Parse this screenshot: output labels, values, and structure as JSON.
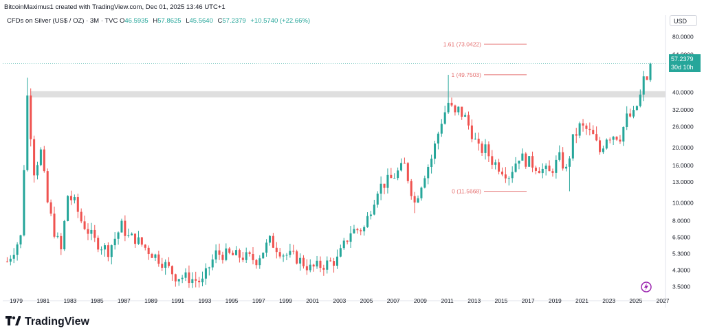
{
  "header": {
    "created_by": "BitcoinMaximus1 created with TradingView.com, Dec 01, 2025 13:46 UTC+1"
  },
  "symbol_bar": {
    "name": "CFDs on Silver (US$ / OZ) · 3M · TVC",
    "open_label": "O",
    "open": "46.5935",
    "high_label": "H",
    "high": "57.8625",
    "low_label": "L",
    "low": "45.5640",
    "close_label": "C",
    "close": "57.2379",
    "change": "+10.5740 (+22.66%)"
  },
  "currency_button": "USD",
  "last_price": {
    "value": "57.2379",
    "countdown": "30d 10h"
  },
  "brand": {
    "name": "TradingView"
  },
  "colors": {
    "up": "#26a69a",
    "down": "#ef5350",
    "fib": "#e57373",
    "resistance_band": "#d9d9d9"
  },
  "chart_data": {
    "type": "candlestick",
    "y_scale": "log",
    "ylim": [
      3.2,
      90
    ],
    "x_ticks": [
      "1979",
      "1981",
      "1983",
      "1985",
      "1987",
      "1989",
      "1991",
      "1993",
      "1995",
      "1997",
      "1999",
      "2001",
      "2003",
      "2005",
      "2007",
      "2009",
      "2011",
      "2013",
      "2015",
      "2017",
      "2019",
      "2021",
      "2023",
      "2025",
      "2027"
    ],
    "y_ticks": [
      {
        "label": "80.0000",
        "value": 80
      },
      {
        "label": "64.0000",
        "value": 64
      },
      {
        "label": "40.0000",
        "value": 40
      },
      {
        "label": "32.0000",
        "value": 32
      },
      {
        "label": "26.0000",
        "value": 26
      },
      {
        "label": "20.0000",
        "value": 20
      },
      {
        "label": "16.0000",
        "value": 16
      },
      {
        "label": "13.0000",
        "value": 13
      },
      {
        "label": "10.0000",
        "value": 10
      },
      {
        "label": "8.0000",
        "value": 8
      },
      {
        "label": "6.5000",
        "value": 6.5
      },
      {
        "label": "5.3000",
        "value": 5.3
      },
      {
        "label": "4.3000",
        "value": 4.3
      },
      {
        "label": "3.5000",
        "value": 3.5
      }
    ],
    "resistance_zone": [
      37.5,
      40.5
    ],
    "fib_levels": [
      {
        "label": "1.61 (73.0422)",
        "value": 73.0422
      },
      {
        "label": "1 (49.7503)",
        "value": 49.7503
      },
      {
        "label": "0 (11.5668)",
        "value": 11.5668
      }
    ],
    "candles_anchor": [
      [
        1978.5,
        4.8
      ],
      [
        1979.5,
        6.5
      ],
      [
        1980.0,
        38
      ],
      [
        1980.5,
        15
      ],
      [
        1981.0,
        19
      ],
      [
        1981.5,
        10
      ],
      [
        1982.0,
        7
      ],
      [
        1982.5,
        5.5
      ],
      [
        1983.0,
        11
      ],
      [
        1983.5,
        10
      ],
      [
        1984.0,
        8
      ],
      [
        1985.0,
        6.2
      ],
      [
        1986.0,
        5.5
      ],
      [
        1987.0,
        7.5
      ],
      [
        1987.5,
        6.5
      ],
      [
        1988.0,
        6.4
      ],
      [
        1989.0,
        5.5
      ],
      [
        1990.0,
        4.8
      ],
      [
        1991.0,
        4.0
      ],
      [
        1992.0,
        3.9
      ],
      [
        1993.0,
        3.7
      ],
      [
        1993.5,
        4.5
      ],
      [
        1994.0,
        5.3
      ],
      [
        1995.0,
        5.2
      ],
      [
        1996.0,
        5.1
      ],
      [
        1997.0,
        4.9
      ],
      [
        1998.0,
        6.2
      ],
      [
        1999.0,
        5.3
      ],
      [
        2000.0,
        5.0
      ],
      [
        2001.0,
        4.4
      ],
      [
        2002.0,
        4.6
      ],
      [
        2003.0,
        4.9
      ],
      [
        2004.0,
        7.0
      ],
      [
        2005.0,
        7.3
      ],
      [
        2006.0,
        12
      ],
      [
        2007.0,
        13.5
      ],
      [
        2008.0,
        16
      ],
      [
        2008.75,
        10
      ],
      [
        2009.5,
        14.5
      ],
      [
        2010.0,
        17.5
      ],
      [
        2010.75,
        28
      ],
      [
        2011.25,
        35
      ],
      [
        2011.75,
        30
      ],
      [
        2012.0,
        32
      ],
      [
        2012.5,
        29
      ],
      [
        2013.0,
        24
      ],
      [
        2013.5,
        19.5
      ],
      [
        2014.0,
        19.5
      ],
      [
        2014.5,
        17
      ],
      [
        2015.0,
        15.8
      ],
      [
        2015.75,
        14.2
      ],
      [
        2016.5,
        18
      ],
      [
        2017.0,
        17
      ],
      [
        2018.0,
        15.5
      ],
      [
        2018.75,
        14.5
      ],
      [
        2019.5,
        17.5
      ],
      [
        2020.0,
        15
      ],
      [
        2020.5,
        22
      ],
      [
        2021.0,
        26
      ],
      [
        2021.5,
        25
      ],
      [
        2022.0,
        23
      ],
      [
        2022.5,
        19
      ],
      [
        2023.0,
        23
      ],
      [
        2023.5,
        23.5
      ],
      [
        2024.0,
        23
      ],
      [
        2024.5,
        29
      ],
      [
        2025.0,
        30
      ],
      [
        2025.5,
        38
      ],
      [
        2025.75,
        46.5935
      ],
      [
        2025.9,
        57.2379
      ]
    ],
    "last_candle": {
      "open": 46.5935,
      "high": 57.8625,
      "low": 45.564,
      "close": 57.2379
    }
  }
}
